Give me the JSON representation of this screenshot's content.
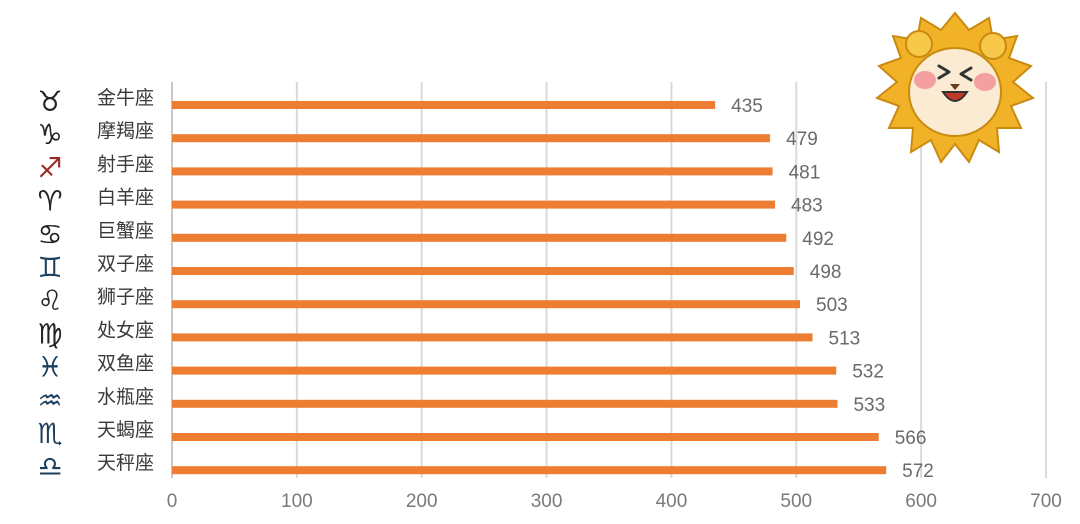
{
  "chart_data": {
    "type": "bar",
    "orientation": "horizontal",
    "title": "",
    "xlabel": "",
    "ylabel": "",
    "xlim": [
      0,
      700
    ],
    "x_ticks": [
      "0",
      "100",
      "200",
      "300",
      "400",
      "500",
      "600",
      "700"
    ],
    "grid": "vertical",
    "legend": "none",
    "bar_color": "#ED7D31",
    "categories": [
      "金牛座",
      "摩羯座",
      "射手座",
      "白羊座",
      "巨蟹座",
      "双子座",
      "狮子座",
      "处女座",
      "双鱼座",
      "水瓶座",
      "天蝎座",
      "天秤座"
    ],
    "values": [
      435,
      479,
      481,
      483,
      492,
      498,
      503,
      513,
      532,
      533,
      566,
      572
    ],
    "data_labels": [
      "435",
      "479",
      "481",
      "483",
      "492",
      "498",
      "503",
      "513",
      "532",
      "533",
      "566",
      "572"
    ],
    "category_icons": [
      "taurus-icon",
      "capricorn-icon",
      "sagittarius-icon",
      "aries-icon",
      "cancer-icon",
      "gemini-icon",
      "leo-icon",
      "virgo-icon",
      "pisces-icon",
      "aquarius-icon",
      "scorpio-icon",
      "libra-icon"
    ]
  },
  "decoration": {
    "mascot_icon": "lion-mascot-icon"
  }
}
